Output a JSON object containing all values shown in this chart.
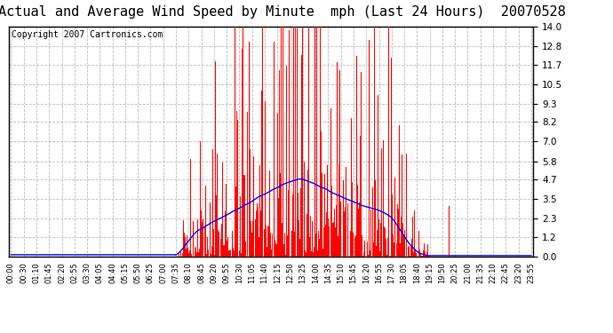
{
  "title": "Actual and Average Wind Speed by Minute  mph (Last 24 Hours)  20070528",
  "copyright": "Copyright 2007 Cartronics.com",
  "yticks": [
    0.0,
    1.2,
    2.3,
    3.5,
    4.7,
    5.8,
    7.0,
    8.2,
    9.3,
    10.5,
    11.7,
    12.8,
    14.0
  ],
  "ylim": [
    0.0,
    14.0
  ],
  "bar_color": "#ff0000",
  "line_color": "#0000ff",
  "bg_color": "#ffffff",
  "grid_color": "#aaaaaa",
  "title_fontsize": 11,
  "copyright_fontsize": 7,
  "xtick_labels": [
    "00:00",
    "00:30",
    "01:10",
    "01:45",
    "02:20",
    "02:55",
    "03:30",
    "04:05",
    "04:40",
    "05:15",
    "05:50",
    "06:25",
    "07:00",
    "07:35",
    "08:10",
    "08:45",
    "09:20",
    "09:55",
    "10:30",
    "11:05",
    "11:40",
    "12:15",
    "12:50",
    "13:25",
    "14:00",
    "14:35",
    "15:10",
    "15:45",
    "16:20",
    "16:55",
    "17:30",
    "18:05",
    "18:40",
    "19:15",
    "19:50",
    "20:25",
    "21:00",
    "21:35",
    "22:10",
    "22:45",
    "23:20",
    "23:55"
  ]
}
